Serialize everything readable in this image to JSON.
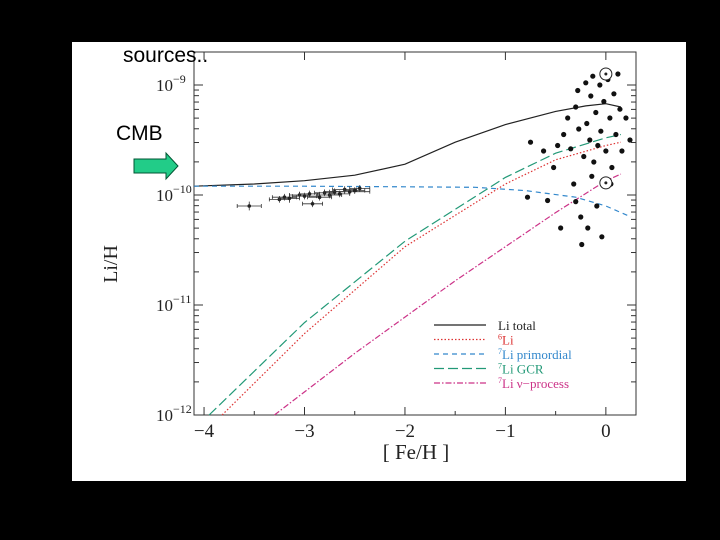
{
  "slide": {
    "annotation_top": "sources..",
    "annotation_cmb": "CMB"
  },
  "chart_data": {
    "type": "line",
    "xlabel": "[ Fe/H ]",
    "ylabel": "Li/H",
    "xlim": [
      -4.1,
      0.3
    ],
    "ylim_log10": [
      -12,
      -8.7
    ],
    "y_scale": "log",
    "x_ticks": [
      {
        "v": -4,
        "label": "−4"
      },
      {
        "v": -3,
        "label": "−3"
      },
      {
        "v": -2,
        "label": "−2"
      },
      {
        "v": -1,
        "label": "−1"
      },
      {
        "v": 0,
        "label": "0"
      }
    ],
    "y_ticks": [
      {
        "exp": -9,
        "label": "10",
        "sup": "−9"
      },
      {
        "exp": -10,
        "label": "10",
        "sup": "−10"
      },
      {
        "exp": -11,
        "label": "10",
        "sup": "−11"
      },
      {
        "exp": -12,
        "label": "10",
        "sup": "−12"
      }
    ],
    "legend_position": "bottom-right",
    "series": [
      {
        "name": "Li total",
        "legend_sup": "",
        "legend_rest": "Li total",
        "color": "#222222",
        "dash": "",
        "width": 1.2,
        "points": [
          [
            -4.1,
            -9.92
          ],
          [
            -3.5,
            -9.9
          ],
          [
            -3.0,
            -9.87
          ],
          [
            -2.5,
            -9.82
          ],
          [
            -2.0,
            -9.72
          ],
          [
            -1.5,
            -9.52
          ],
          [
            -1.0,
            -9.36
          ],
          [
            -0.5,
            -9.24
          ],
          [
            -0.2,
            -9.19
          ],
          [
            0.0,
            -9.17
          ],
          [
            0.15,
            -9.2
          ]
        ]
      },
      {
        "name": "6Li",
        "legend_sup": "6",
        "legend_rest": "Li",
        "color": "#dd3333",
        "dash": "1.5,2",
        "width": 1.2,
        "points": [
          [
            -3.82,
            -12
          ],
          [
            -3.0,
            -11.26
          ],
          [
            -2.0,
            -10.47
          ],
          [
            -1.0,
            -9.9
          ],
          [
            -0.5,
            -9.68
          ],
          [
            0.0,
            -9.55
          ],
          [
            0.15,
            -9.52
          ]
        ]
      },
      {
        "name": "7Li primordial",
        "legend_sup": "7",
        "legend_rest": "Li primordial",
        "color": "#3388cc",
        "dash": "5,4",
        "width": 1.2,
        "points": [
          [
            -4.1,
            -9.92
          ],
          [
            -3.0,
            -9.92
          ],
          [
            -2.0,
            -9.925
          ],
          [
            -1.3,
            -9.93
          ],
          [
            -0.8,
            -9.96
          ],
          [
            -0.3,
            -10.02
          ],
          [
            0.0,
            -10.1
          ],
          [
            0.25,
            -10.2
          ]
        ]
      },
      {
        "name": "7Li GCR",
        "legend_sup": "7",
        "legend_rest": "Li GCR",
        "color": "#229977",
        "dash": "10,4",
        "width": 1.2,
        "points": [
          [
            -3.95,
            -12
          ],
          [
            -3.0,
            -11.16
          ],
          [
            -2.0,
            -10.42
          ],
          [
            -1.0,
            -9.84
          ],
          [
            -0.5,
            -9.62
          ],
          [
            0.0,
            -9.48
          ],
          [
            0.15,
            -9.45
          ]
        ]
      },
      {
        "name": "7Li ν-process",
        "legend_sup": "7",
        "legend_rest": "Li ν−process",
        "color": "#cc3388",
        "dash": "6,2,1.5,2",
        "width": 1.2,
        "points": [
          [
            -3.3,
            -12
          ],
          [
            -2.5,
            -11.44
          ],
          [
            -1.5,
            -10.78
          ],
          [
            -0.5,
            -10.16
          ],
          [
            0.0,
            -9.87
          ],
          [
            0.15,
            -9.81
          ]
        ]
      }
    ],
    "halo_stars_with_error_bars": [
      {
        "x": -3.55,
        "y": -10.1,
        "xerr": 0.12,
        "yerr": 0.04
      },
      {
        "x": -3.25,
        "y": -10.04,
        "xerr": 0.1,
        "yerr": 0.03
      },
      {
        "x": -3.2,
        "y": -10.02,
        "xerr": 0.12,
        "yerr": 0.03
      },
      {
        "x": -3.15,
        "y": -10.03,
        "xerr": 0.1,
        "yerr": 0.04
      },
      {
        "x": -3.05,
        "y": -10.0,
        "xerr": 0.1,
        "yerr": 0.03
      },
      {
        "x": -3.0,
        "y": -10.01,
        "xerr": 0.12,
        "yerr": 0.03
      },
      {
        "x": -2.95,
        "y": -9.99,
        "xerr": 0.1,
        "yerr": 0.03
      },
      {
        "x": -2.92,
        "y": -10.08,
        "xerr": 0.1,
        "yerr": 0.03
      },
      {
        "x": -2.85,
        "y": -10.02,
        "xerr": 0.12,
        "yerr": 0.03
      },
      {
        "x": -2.8,
        "y": -9.98,
        "xerr": 0.1,
        "yerr": 0.03
      },
      {
        "x": -2.75,
        "y": -10.0,
        "xerr": 0.12,
        "yerr": 0.03
      },
      {
        "x": -2.7,
        "y": -9.97,
        "xerr": 0.1,
        "yerr": 0.03
      },
      {
        "x": -2.65,
        "y": -9.99,
        "xerr": 0.1,
        "yerr": 0.03
      },
      {
        "x": -2.6,
        "y": -9.95,
        "xerr": 0.12,
        "yerr": 0.03
      },
      {
        "x": -2.55,
        "y": -9.97,
        "xerr": 0.2,
        "yerr": 0.03
      },
      {
        "x": -2.5,
        "y": -9.96,
        "xerr": 0.1,
        "yerr": 0.03
      },
      {
        "x": -2.45,
        "y": -9.94,
        "xerr": 0.1,
        "yerr": 0.03
      }
    ],
    "disk_stars": [
      {
        "x": -0.78,
        "y": -10.02
      },
      {
        "x": -0.75,
        "y": -9.52
      },
      {
        "x": -0.62,
        "y": -9.6
      },
      {
        "x": -0.58,
        "y": -10.05
      },
      {
        "x": -0.52,
        "y": -9.75
      },
      {
        "x": -0.48,
        "y": -9.55
      },
      {
        "x": -0.42,
        "y": -9.45
      },
      {
        "x": -0.38,
        "y": -9.3
      },
      {
        "x": -0.35,
        "y": -9.58
      },
      {
        "x": -0.3,
        "y": -9.2
      },
      {
        "x": -0.3,
        "y": -10.06
      },
      {
        "x": -0.28,
        "y": -9.05
      },
      {
        "x": -0.27,
        "y": -9.4
      },
      {
        "x": -0.25,
        "y": -10.2
      },
      {
        "x": -0.24,
        "y": -10.45
      },
      {
        "x": -0.22,
        "y": -9.65
      },
      {
        "x": -0.2,
        "y": -8.98
      },
      {
        "x": -0.19,
        "y": -9.35
      },
      {
        "x": -0.18,
        "y": -10.3
      },
      {
        "x": -0.16,
        "y": -9.5
      },
      {
        "x": -0.15,
        "y": -9.1
      },
      {
        "x": -0.13,
        "y": -8.92
      },
      {
        "x": -0.12,
        "y": -9.7
      },
      {
        "x": -0.1,
        "y": -9.25
      },
      {
        "x": -0.09,
        "y": -10.1
      },
      {
        "x": -0.08,
        "y": -9.55
      },
      {
        "x": -0.06,
        "y": -9.0
      },
      {
        "x": -0.05,
        "y": -9.42
      },
      {
        "x": -0.04,
        "y": -10.38
      },
      {
        "x": -0.02,
        "y": -9.15
      },
      {
        "x": 0.0,
        "y": -9.6
      },
      {
        "x": 0.02,
        "y": -8.95
      },
      {
        "x": 0.04,
        "y": -9.3
      },
      {
        "x": 0.06,
        "y": -9.75
      },
      {
        "x": 0.08,
        "y": -9.08
      },
      {
        "x": 0.1,
        "y": -9.45
      },
      {
        "x": 0.12,
        "y": -8.9
      },
      {
        "x": 0.14,
        "y": -9.22
      },
      {
        "x": 0.16,
        "y": -9.6
      },
      {
        "x": 0.2,
        "y": -9.3
      },
      {
        "x": 0.24,
        "y": -9.5
      },
      {
        "x": -0.14,
        "y": -9.83
      },
      {
        "x": -0.32,
        "y": -9.9
      },
      {
        "x": 0.05,
        "y": -9.9
      },
      {
        "x": -0.45,
        "y": -10.3
      }
    ],
    "sun_symbols": [
      {
        "x": 0.0,
        "y": -8.9
      },
      {
        "x": 0.0,
        "y": -9.89
      }
    ]
  },
  "colors": {
    "slide_background": "#000000",
    "figure_background": "#ffffff",
    "cmb_arrow_fill": "#22cc88",
    "cmb_arrow_stroke": "#005533"
  }
}
